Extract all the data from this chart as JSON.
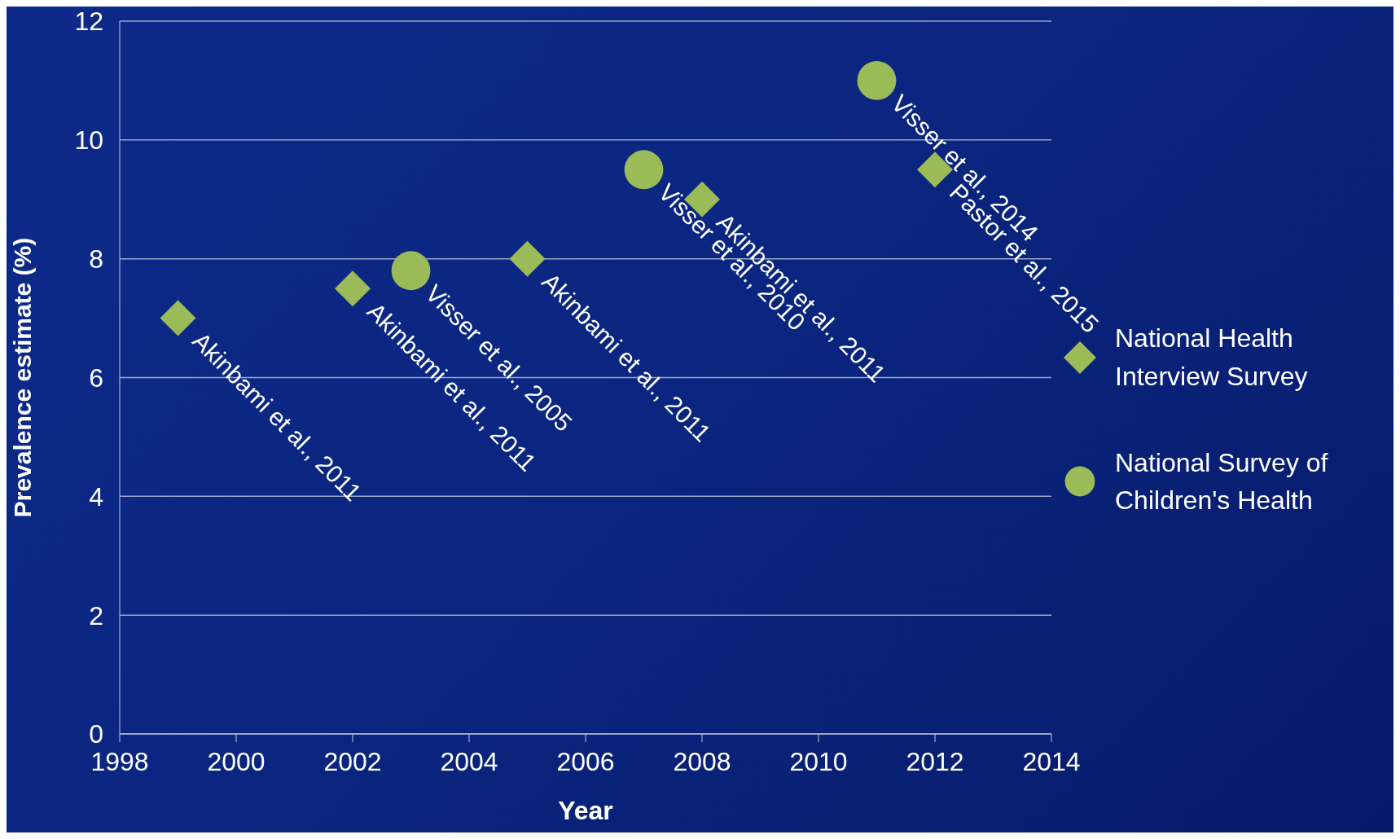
{
  "chart_data": {
    "type": "scatter",
    "xlabel": "Year",
    "ylabel": "Prevalence estimate (%)",
    "xlim": [
      1998,
      2014
    ],
    "xticks": [
      1998,
      2000,
      2002,
      2004,
      2006,
      2008,
      2010,
      2012,
      2014
    ],
    "ylim": [
      0,
      12
    ],
    "yticks": [
      0,
      2,
      4,
      6,
      8,
      10,
      12
    ],
    "grid": "y",
    "legend": "right",
    "series": [
      {
        "name": "National Health Interview Survey",
        "color": "#9bbb59",
        "marker": "diamond",
        "x": [
          1999,
          2002,
          2005,
          2008,
          2012
        ],
        "values": [
          7,
          7.5,
          8,
          9,
          9.5
        ]
      },
      {
        "name": "National Survey of Children's Health",
        "color": "#9bbb59",
        "marker": "circle",
        "x": [
          2003,
          2007,
          2011
        ],
        "values": [
          7.8,
          9.5,
          11
        ]
      }
    ],
    "annotations": [
      {
        "text": "Akinbami et al., 2011",
        "x": 1999,
        "y": 7
      },
      {
        "text": "Akinbami et al., 2011",
        "x": 2002,
        "y": 7.5
      },
      {
        "text": "Visser et al., 2005",
        "x": 2003,
        "y": 7.8
      },
      {
        "text": "Akinbami et al., 2011",
        "x": 2005,
        "y": 8
      },
      {
        "text": "Visser et al., 2010",
        "x": 2007,
        "y": 9.5
      },
      {
        "text": "Akinbami et al., 2011",
        "x": 2008,
        "y": 9
      },
      {
        "text": "Visser et al., 2014",
        "x": 2011,
        "y": 11
      },
      {
        "text": "Pastor et al., 2015",
        "x": 2012,
        "y": 9.5
      }
    ]
  }
}
